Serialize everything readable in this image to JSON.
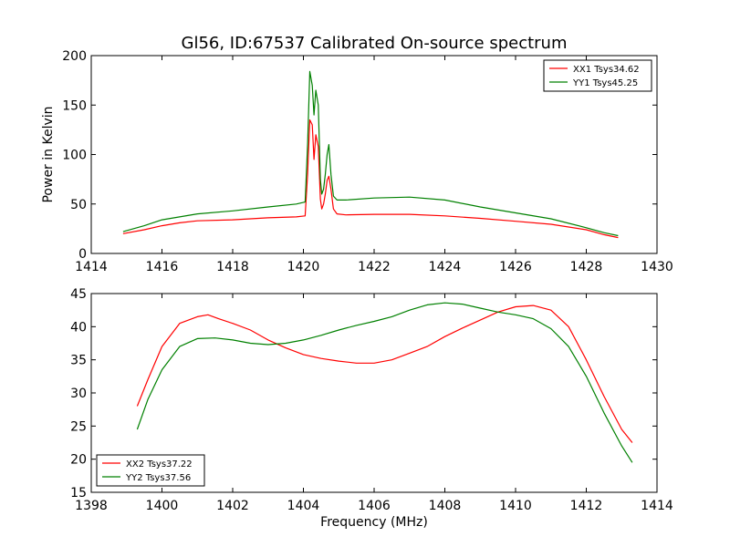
{
  "title": "Gl56, ID:67537 Calibrated On-source spectrum",
  "chart_data": [
    {
      "type": "line",
      "ylabel": "Power in Kelvin",
      "xlabel": "",
      "xlim": [
        1414,
        1430
      ],
      "ylim": [
        0,
        200
      ],
      "xticks": [
        1414,
        1416,
        1418,
        1420,
        1422,
        1424,
        1426,
        1428,
        1430
      ],
      "yticks": [
        0,
        50,
        100,
        150,
        200
      ],
      "legend": "top-right",
      "grid": false,
      "series": [
        {
          "name": "XX1 Tsys34.62",
          "color": "#ff0000",
          "x": [
            1414.9,
            1415.5,
            1416.0,
            1416.5,
            1417.0,
            1418.0,
            1419.0,
            1419.8,
            1420.05,
            1420.12,
            1420.18,
            1420.25,
            1420.3,
            1420.35,
            1420.42,
            1420.48,
            1420.52,
            1420.57,
            1420.62,
            1420.67,
            1420.72,
            1420.78,
            1420.85,
            1420.95,
            1421.2,
            1422.0,
            1423.0,
            1424.0,
            1425.0,
            1426.0,
            1427.0,
            1428.0,
            1428.5,
            1428.9
          ],
          "y": [
            20,
            24,
            28,
            31,
            33,
            34,
            36,
            37,
            38,
            80,
            135,
            130,
            95,
            120,
            108,
            55,
            45,
            50,
            60,
            74,
            78,
            65,
            45,
            40,
            39,
            39.5,
            39.5,
            38,
            35.5,
            32.5,
            29.5,
            24,
            19,
            16
          ]
        },
        {
          "name": "YY1 Tsys45.25",
          "color": "#008000",
          "x": [
            1414.9,
            1415.5,
            1416.0,
            1417.0,
            1418.0,
            1419.0,
            1419.8,
            1420.05,
            1420.12,
            1420.18,
            1420.25,
            1420.3,
            1420.35,
            1420.42,
            1420.48,
            1420.52,
            1420.57,
            1420.62,
            1420.67,
            1420.72,
            1420.78,
            1420.85,
            1420.95,
            1421.2,
            1422.0,
            1423.0,
            1424.0,
            1425.0,
            1426.0,
            1427.0,
            1428.0,
            1428.5,
            1428.9
          ],
          "y": [
            22,
            28,
            34,
            40,
            43,
            47,
            50,
            52,
            110,
            184,
            170,
            140,
            165,
            150,
            75,
            60,
            65,
            80,
            100,
            110,
            80,
            58,
            54,
            54,
            56,
            57,
            54,
            47,
            41,
            35,
            26,
            21,
            18
          ]
        }
      ]
    },
    {
      "type": "line",
      "xlabel": "Frequency (MHz)",
      "ylabel": "",
      "xlim": [
        1398,
        1414
      ],
      "ylim": [
        15,
        45
      ],
      "xticks": [
        1398,
        1400,
        1402,
        1404,
        1406,
        1408,
        1410,
        1412,
        1414
      ],
      "yticks": [
        15,
        20,
        25,
        30,
        35,
        40,
        45
      ],
      "legend": "bottom-left",
      "grid": false,
      "series": [
        {
          "name": "XX2 Tsys37.22",
          "color": "#ff0000",
          "x": [
            1399.3,
            1399.6,
            1400.0,
            1400.5,
            1401.0,
            1401.3,
            1401.6,
            1402.0,
            1402.5,
            1403.0,
            1403.5,
            1404.0,
            1404.5,
            1405.0,
            1405.5,
            1406.0,
            1406.5,
            1407.0,
            1407.5,
            1408.0,
            1408.5,
            1409.0,
            1409.5,
            1410.0,
            1410.5,
            1411.0,
            1411.5,
            1412.0,
            1412.5,
            1413.0,
            1413.3
          ],
          "y": [
            28,
            32,
            37,
            40.5,
            41.5,
            41.8,
            41.2,
            40.5,
            39.5,
            38,
            36.8,
            35.8,
            35.2,
            34.8,
            34.5,
            34.5,
            35,
            36,
            37,
            38.5,
            39.8,
            41,
            42.2,
            43,
            43.2,
            42.5,
            40,
            35,
            29.5,
            24.5,
            22.5
          ]
        },
        {
          "name": "YY2 Tsys37.56",
          "color": "#008000",
          "x": [
            1399.3,
            1399.6,
            1400.0,
            1400.5,
            1401.0,
            1401.5,
            1402.0,
            1402.5,
            1403.0,
            1403.5,
            1404.0,
            1404.5,
            1405.0,
            1405.5,
            1406.0,
            1406.5,
            1407.0,
            1407.5,
            1408.0,
            1408.5,
            1409.0,
            1409.5,
            1410.0,
            1410.5,
            1411.0,
            1411.5,
            1412.0,
            1412.5,
            1413.0,
            1413.3
          ],
          "y": [
            24.5,
            29,
            33.5,
            37,
            38.2,
            38.3,
            38,
            37.5,
            37.3,
            37.5,
            38,
            38.7,
            39.5,
            40.2,
            40.8,
            41.5,
            42.5,
            43.3,
            43.6,
            43.4,
            42.8,
            42.2,
            41.8,
            41.2,
            39.7,
            37,
            32.5,
            27,
            22,
            19.5
          ]
        }
      ]
    }
  ]
}
